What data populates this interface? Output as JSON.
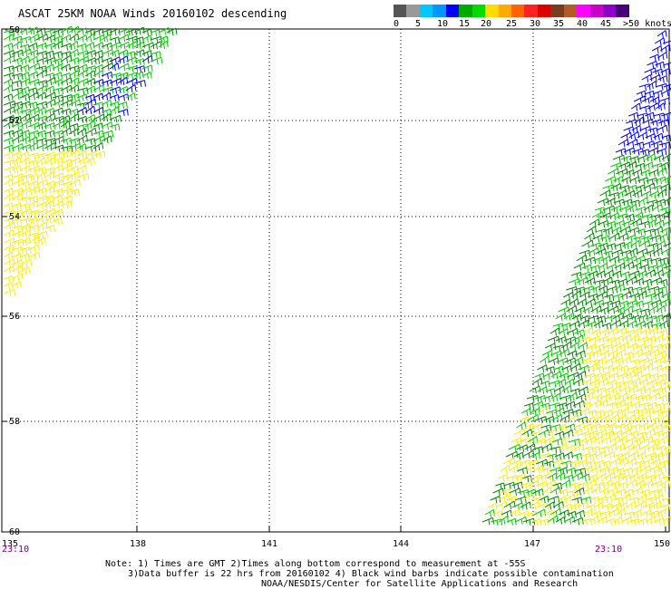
{
  "header": {
    "title": "ASCAT 25KM NOAA Winds 20160102 descending"
  },
  "legend": {
    "colors": [
      "#555555",
      "#999999",
      "#00c8ff",
      "#0096ff",
      "#0000ff",
      "#00aa00",
      "#00dc00",
      "#ffdc00",
      "#ffaa00",
      "#ff6400",
      "#ff2020",
      "#dc0000",
      "#7a3c1e",
      "#b45a28",
      "#ff00ff",
      "#c800c8",
      "#8c00c8",
      "#460078"
    ],
    "labels": [
      "0",
      "5",
      "10",
      "15",
      "20",
      "25",
      "30",
      "35",
      "40",
      "45",
      ">50 knots"
    ]
  },
  "map": {
    "lat_labels": [
      "-50",
      "-52",
      "-54",
      "-56",
      "-58",
      "-60"
    ],
    "lon_labels": [
      "135",
      "138",
      "141",
      "144",
      "147",
      "150"
    ],
    "time_labels": [
      "23:10",
      "23:10"
    ],
    "wind_colors": {
      "blue": "#0000ff",
      "dark_green": "#008800",
      "green": "#00cc00",
      "yellow": "#ffee00"
    }
  },
  "notes": {
    "line1": "Note: 1) Times are GMT 2)Times along bottom correspond to measurement at -55S",
    "line2": "3)Data buffer is 22 hrs from 20160102 4) Black wind barbs indicate possible contamination",
    "line3": "NOAA/NESDIS/Center for Satellite Applications and Research"
  }
}
